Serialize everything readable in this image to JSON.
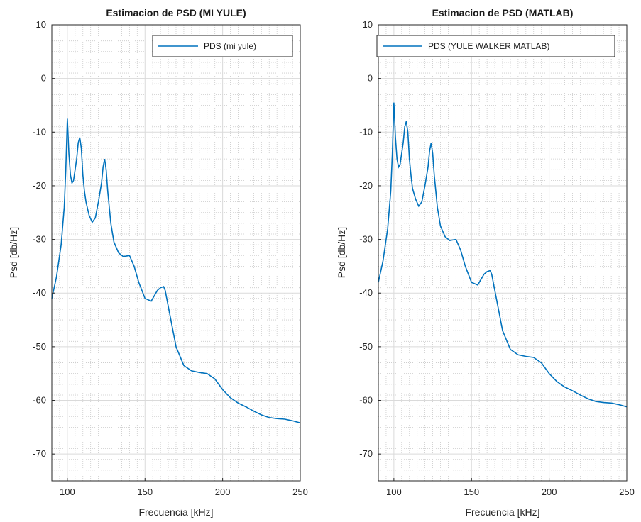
{
  "chart_data": [
    {
      "type": "line",
      "title": "Estimacion de PSD (MI YULE)",
      "xlabel": "Frecuencia [kHz]",
      "ylabel": "Psd [db/Hz]",
      "xlim": [
        90,
        250
      ],
      "ylim": [
        -75,
        10
      ],
      "xticks": [
        100,
        150,
        200,
        250
      ],
      "yticks": [
        10,
        0,
        -10,
        -20,
        -30,
        -40,
        -50,
        -60,
        -70
      ],
      "grid": true,
      "minor_grid": true,
      "legend_position": "top-right",
      "series": [
        {
          "name": "PDS (mi yule)",
          "color": "#0072BD",
          "x": [
            90,
            93,
            96,
            98,
            99,
            100,
            101,
            102,
            103,
            104,
            106,
            107,
            108,
            109,
            110,
            111,
            112,
            114,
            116,
            118,
            120,
            122,
            123,
            124,
            125,
            126,
            127,
            128,
            130,
            133,
            136,
            140,
            143,
            146,
            150,
            154,
            156,
            158,
            160,
            162,
            163,
            164,
            166,
            168,
            170,
            175,
            180,
            185,
            190,
            195,
            200,
            205,
            210,
            215,
            220,
            225,
            230,
            235,
            240,
            245,
            250
          ],
          "y": [
            -41,
            -37,
            -31,
            -24,
            -17,
            -7.5,
            -14,
            -18,
            -19.5,
            -19,
            -15,
            -12,
            -11,
            -13,
            -18,
            -21,
            -23,
            -25.5,
            -26.8,
            -26,
            -23,
            -19.5,
            -16.5,
            -15,
            -17,
            -21,
            -24,
            -27,
            -30.5,
            -32.5,
            -33.2,
            -33,
            -35,
            -38,
            -41,
            -41.5,
            -40.5,
            -39.5,
            -39,
            -38.8,
            -39.5,
            -41,
            -44,
            -47,
            -50,
            -53.5,
            -54.5,
            -54.8,
            -55,
            -56,
            -58,
            -59.5,
            -60.5,
            -61.2,
            -62,
            -62.7,
            -63.2,
            -63.4,
            -63.5,
            -63.8,
            -64.2
          ]
        }
      ]
    },
    {
      "type": "line",
      "title": "Estimacion de PSD (MATLAB)",
      "xlabel": "Frecuencia [kHz]",
      "ylabel": "Psd [db/Hz]",
      "xlim": [
        90,
        250
      ],
      "ylim": [
        -75,
        10
      ],
      "xticks": [
        100,
        150,
        200,
        250
      ],
      "yticks": [
        10,
        0,
        -10,
        -20,
        -30,
        -40,
        -50,
        -60,
        -70
      ],
      "grid": true,
      "minor_grid": true,
      "legend_position": "top-right",
      "series": [
        {
          "name": "PDS (YULE WALKER MATLAB)",
          "color": "#0072BD",
          "x": [
            90,
            93,
            96,
            98,
            99,
            100,
            101,
            102,
            103,
            104,
            106,
            107,
            108,
            109,
            110,
            111,
            112,
            114,
            116,
            118,
            120,
            122,
            123,
            124,
            125,
            126,
            127,
            128,
            130,
            133,
            136,
            140,
            143,
            146,
            150,
            154,
            156,
            158,
            160,
            162,
            163,
            164,
            166,
            168,
            170,
            175,
            180,
            185,
            190,
            195,
            200,
            205,
            210,
            215,
            220,
            225,
            230,
            235,
            240,
            245,
            250
          ],
          "y": [
            -38,
            -34,
            -28,
            -21,
            -14,
            -4.5,
            -11,
            -15,
            -16.5,
            -16,
            -12,
            -9,
            -8,
            -10,
            -15,
            -18,
            -20.5,
            -22.5,
            -23.8,
            -23,
            -20,
            -16.5,
            -13.5,
            -12,
            -14,
            -18,
            -21,
            -24,
            -27.5,
            -29.5,
            -30.2,
            -30,
            -32,
            -35,
            -38,
            -38.5,
            -37.5,
            -36.5,
            -36,
            -35.8,
            -36.5,
            -38,
            -41,
            -44,
            -47,
            -50.5,
            -51.5,
            -51.8,
            -52,
            -53,
            -55,
            -56.5,
            -57.5,
            -58.2,
            -59,
            -59.7,
            -60.2,
            -60.4,
            -60.5,
            -60.8,
            -61.2
          ]
        }
      ]
    }
  ]
}
